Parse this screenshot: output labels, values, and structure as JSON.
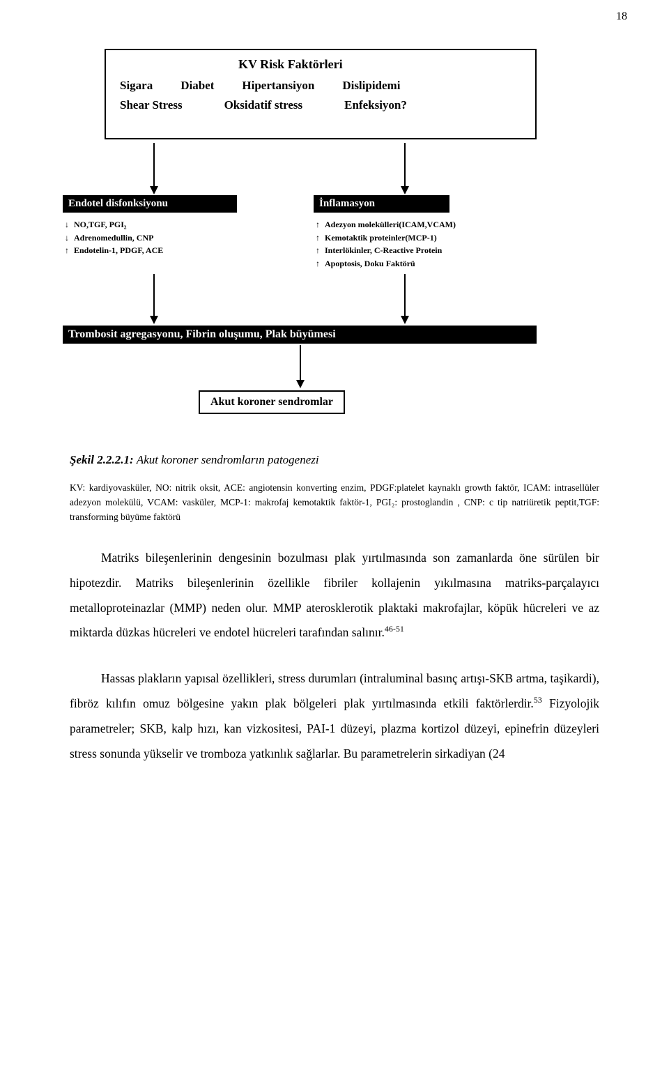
{
  "page_number": "18",
  "figure": {
    "top_box": {
      "title": "KV Risk Faktörleri",
      "row1": [
        "Sigara",
        "Diabet",
        "Hipertansiyon",
        "Dislipidemi"
      ],
      "row2": [
        "Shear Stress",
        "Oksidatif stress",
        "Enfeksiyon?"
      ]
    },
    "endothelial": {
      "title": "Endotel disfonksiyonu",
      "lines": [
        {
          "arrow": "down",
          "text": "NO,TGF, PGI₂"
        },
        {
          "arrow": "down",
          "text": "Adrenomedullin, CNP"
        },
        {
          "arrow": "up",
          "text": "Endotelin-1, PDGF, ACE"
        }
      ]
    },
    "inflammation": {
      "title": "İnflamasyon",
      "lines": [
        {
          "arrow": "up",
          "text": "Adezyon molekülleri(ICAM,VCAM)"
        },
        {
          "arrow": "up",
          "text": "Kemotaktik proteinler(MCP-1)"
        },
        {
          "arrow": "up",
          "text": "Interlökinler, C-Reactive Protein"
        },
        {
          "arrow": "up",
          "text": "Apoptosis, Doku Faktörü"
        }
      ]
    },
    "thrombosis_bar": "Trombosit agregasyonu, Fibrin oluşumu, Plak büyümesi",
    "bottom_box": "Akut koroner sendromlar"
  },
  "caption_prefix": "Şekil 2.2.2.1:",
  "caption_text": "Akut koroner sendromların patogenezi",
  "legend": "KV: kardiyovasküler, NO: nitrik oksit,  ACE: angiotensin konverting enzim, PDGF:platelet kaynaklı growth faktör, ICAM: intrasellüler adezyon molekülü, VCAM: vasküler, MCP-1: makrofaj kemotaktik faktör-1, PGI₂: prostoglandin , CNP: c tip natriüretik peptit,TGF: transforming büyüme faktörü",
  "para1_a": "Matriks bileşenlerinin dengesinin bozulması plak yırtılmasında son zamanlarda öne sürülen bir hipotezdir. Matriks bileşenlerinin özellikle fibriler kollajenin yıkılmasına matriks-parçalayıcı metalloproteinazlar (MMP) neden olur. MMP aterosklerotik plaktaki makrofajlar, köpük hücreleri ve az miktarda düzkas hücreleri ve endotel hücreleri tarafından salınır.",
  "para1_sup": "46-51",
  "para2_a": "Hassas plakların yapısal özellikleri, stress durumları (intraluminal basınç artışı-SKB artma, taşikardi), fibröz kılıfın omuz bölgesine yakın plak bölgeleri plak yırtılmasında etkili faktörlerdir.",
  "para2_sup": "53",
  "para2_b": " Fizyolojik parametreler; SKB, kalp hızı, kan vizkositesi, PAI-1 düzeyi, plazma kortizol düzeyi, epinefrin düzeyleri stress sonunda yükselir ve tromboza yatkınlık sağlarlar. Bu parametrelerin sirkadiyan (24"
}
